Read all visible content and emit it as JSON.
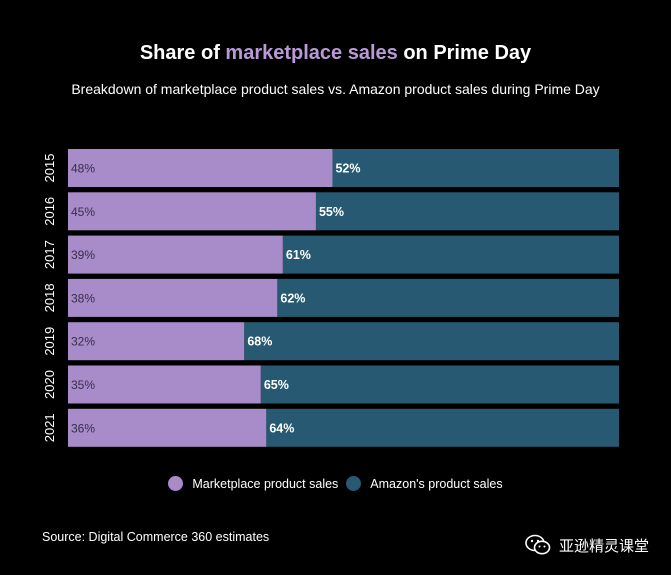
{
  "title": {
    "prefix": "Share of ",
    "highlight": "marketplace sales",
    "suffix": " on Prime Day"
  },
  "subtitle": "Breakdown of marketplace product sales vs. Amazon product sales during Prime Day",
  "colors": {
    "marketplace": "#a78cc9",
    "amazon": "#275a72",
    "highlight": "#b99ad7",
    "background": "#000000"
  },
  "chart_data": {
    "type": "bar",
    "orientation": "horizontal",
    "stacked": true,
    "categories": [
      "2015",
      "2016",
      "2017",
      "2018",
      "2019",
      "2020",
      "2021"
    ],
    "series": [
      {
        "name": "Marketplace product sales",
        "values": [
          48,
          45,
          39,
          38,
          32,
          35,
          36
        ],
        "labels": [
          "48%",
          "45%",
          "39%",
          "38%",
          "32%",
          "35%",
          "36%"
        ]
      },
      {
        "name": "Amazon's product sales",
        "values": [
          52,
          55,
          61,
          62,
          68,
          65,
          64
        ],
        "labels": [
          "52%",
          "55%",
          "61%",
          "62%",
          "68%",
          "65%",
          "64%"
        ]
      }
    ],
    "xlim": [
      0,
      100
    ],
    "grid": false,
    "legend_position": "bottom"
  },
  "legend": {
    "marketplace": "Marketplace product sales",
    "amazon": "Amazon's product sales"
  },
  "source": "Source: Digital Commerce 360 estimates",
  "watermark": {
    "text": "亚逊精灵课堂",
    "icon": "wechat-icon"
  }
}
